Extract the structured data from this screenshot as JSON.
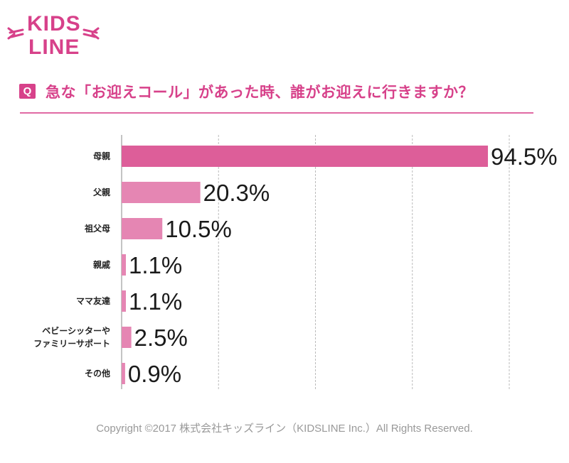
{
  "brand": {
    "logo_line1": "KIDS",
    "logo_line2": "LINE"
  },
  "header": {
    "badge": "Q",
    "question": "急な「お迎えコール」があった時、誰がお迎えに行きますか？"
  },
  "chart_data": {
    "type": "bar",
    "orientation": "horizontal",
    "categories": [
      "母親",
      "父親",
      "祖父母",
      "親戚",
      "ママ友達",
      [
        "ベビーシッターや",
        "ファミリーサポート"
      ],
      "その他"
    ],
    "values": [
      94.5,
      20.3,
      10.5,
      1.1,
      1.1,
      2.5,
      0.9
    ],
    "value_labels": [
      "94.5%",
      "20.3%",
      "10.5%",
      "1.1%",
      "1.1%",
      "2.5%",
      "0.9%"
    ],
    "xlim": [
      0,
      100
    ],
    "grid": true,
    "colors": {
      "primary": "#dd5e99",
      "secondary": "#e586b3",
      "grid": "#bbbbbb",
      "axis": "#888888"
    }
  },
  "footer": {
    "copyright": "Copyright ©2017 株式会社キッズライン（KIDSLINE Inc.）All Rights Reserved."
  }
}
